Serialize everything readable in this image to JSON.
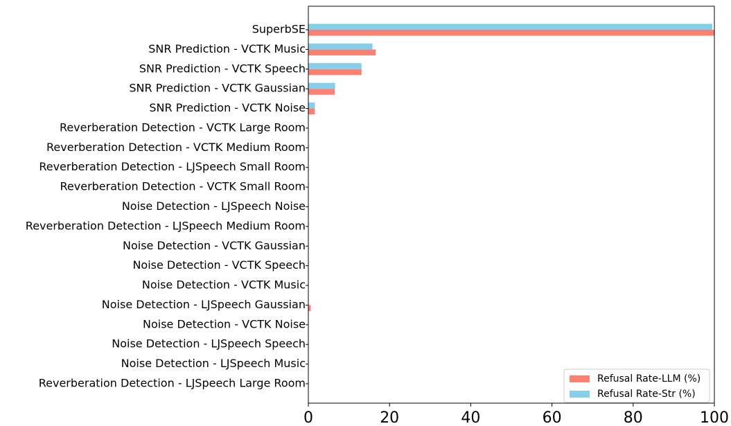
{
  "chart_data": {
    "type": "barh",
    "categories": [
      "SuperbSE",
      "SNR Prediction - VCTK Music",
      "SNR Prediction - VCTK Speech",
      "SNR Prediction - VCTK Gaussian",
      "SNR Prediction - VCTK Noise",
      "Reverberation Detection - VCTK Large Room",
      "Reverberation Detection - VCTK Medium Room",
      "Reverberation Detection - LJSpeech Small Room",
      "Reverberation Detection - VCTK Small Room",
      "Noise Detection - LJSpeech Noise",
      "Reverberation Detection - LJSpeech Medium Room",
      "Noise Detection - VCTK Gaussian",
      "Noise Detection - VCTK Speech",
      "Noise Detection - VCTK Music",
      "Noise Detection - LJSpeech Gaussian",
      "Noise Detection - VCTK Noise",
      "Noise Detection - LJSpeech Speech",
      "Noise Detection - LJSpeech Music",
      "Reverberation Detection - LJSpeech Large Room"
    ],
    "series": [
      {
        "name": "Refusal Rate-LLM (%)",
        "color": "#fa8072",
        "values": [
          100,
          16.6,
          13.1,
          6.5,
          1.6,
          0,
          0,
          0,
          0,
          0,
          0,
          0,
          0,
          0,
          0.6,
          0,
          0,
          0,
          0
        ]
      },
      {
        "name": "Refusal Rate-Str (%)",
        "color": "#87ceeb",
        "values": [
          99.5,
          15.8,
          13.1,
          6.6,
          1.6,
          0,
          0,
          0,
          0,
          0,
          0,
          0,
          0,
          0,
          0,
          0,
          0,
          0,
          0
        ]
      }
    ],
    "xlim": [
      0,
      100
    ],
    "xticks": [
      0,
      20,
      40,
      60,
      80,
      100
    ],
    "legend": "lower right"
  }
}
